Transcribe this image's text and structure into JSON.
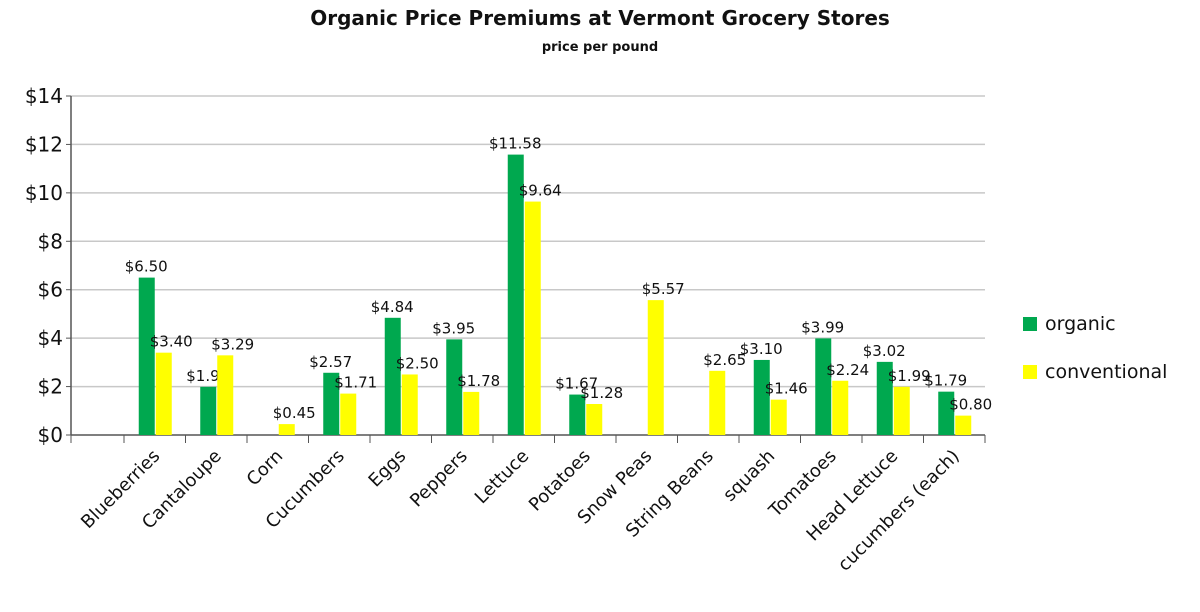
{
  "chart_data": {
    "type": "bar",
    "title": "Organic Price Premiums at Vermont Grocery Stores",
    "subtitle": "price per pound",
    "xlabel": "",
    "ylabel": "",
    "ylim": [
      0,
      14
    ],
    "yticks": [
      "$0",
      "$2",
      "$4",
      "$6",
      "$8",
      "$10",
      "$12",
      "$14"
    ],
    "grid": true,
    "legend_position": "right",
    "categories": [
      "Blueberries",
      "Cantaloupe",
      "Corn",
      "Cucumbers",
      "Eggs",
      "Peppers",
      "Lettuce",
      "Potatoes",
      "Snow Peas",
      "String Beans",
      "squash",
      "Tomatoes",
      "Head Lettuce",
      "cucumbers (each)"
    ],
    "series": [
      {
        "name": "organic",
        "color": "#00a84f",
        "values": [
          6.5,
          1.99,
          null,
          2.57,
          4.84,
          3.95,
          11.58,
          1.67,
          null,
          null,
          3.1,
          3.99,
          3.02,
          1.79
        ],
        "labels": [
          "$6.50",
          "$1.99",
          "",
          "$2.57",
          "$4.84",
          "$3.95",
          "$11.58",
          "$1.67",
          "",
          "",
          "$3.10",
          "$3.99",
          "$3.02",
          "$1.79"
        ]
      },
      {
        "name": "conventional",
        "color": "#ffff00",
        "values": [
          3.4,
          3.29,
          0.45,
          1.71,
          2.5,
          1.78,
          9.64,
          1.28,
          5.57,
          2.65,
          1.46,
          2.24,
          1.99,
          0.8
        ],
        "labels": [
          "$3.40",
          "$3.29",
          "$0.45",
          "$1.71",
          "$2.50",
          "$1.78",
          "$9.64",
          "$1.28",
          "$5.57",
          "$2.65",
          "$1.46",
          "$2.24",
          "$1.99",
          "$0.80"
        ]
      }
    ]
  }
}
